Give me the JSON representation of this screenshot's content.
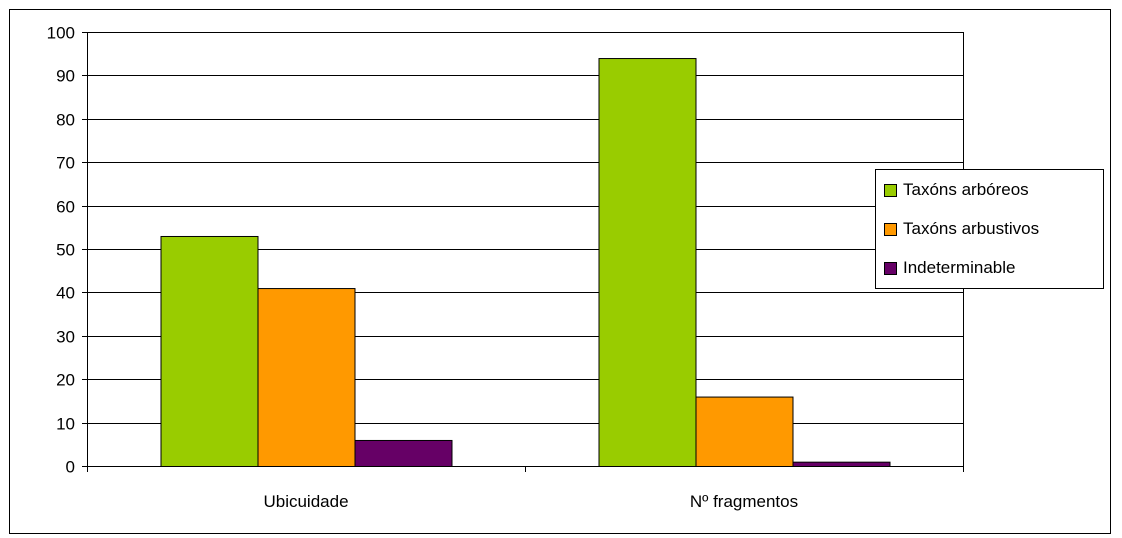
{
  "chart_data": {
    "type": "bar",
    "categories": [
      "Ubicuidade",
      "Nº fragmentos"
    ],
    "series": [
      {
        "name": "Taxóns arbóreos",
        "values": [
          53,
          94
        ],
        "color": "#99cc00"
      },
      {
        "name": "Taxóns arbustivos",
        "values": [
          41,
          16
        ],
        "color": "#ff9900"
      },
      {
        "name": "Indeterminable",
        "values": [
          6,
          1
        ],
        "color": "#660066"
      }
    ],
    "ylim": [
      0,
      100
    ],
    "yticks": [
      0,
      10,
      20,
      30,
      40,
      50,
      60,
      70,
      80,
      90,
      100
    ],
    "grid": true,
    "legend_position": "right"
  }
}
